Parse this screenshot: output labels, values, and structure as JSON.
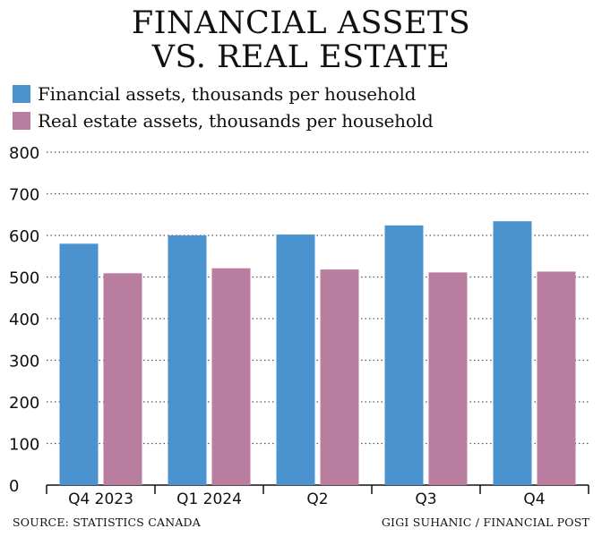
{
  "title_line1": "FINANCIAL ASSETS",
  "title_line2": "VS. REAL ESTATE",
  "legend": [
    {
      "label": "Financial assets, thousands per household",
      "color": "#4b93cf"
    },
    {
      "label": "Real estate assets, thousands per household",
      "color": "#b97d9f"
    }
  ],
  "source": "SOURCE: STATISTICS CANADA",
  "credit": "GIGI SUHANIC / FINANCIAL POST",
  "chart_data": {
    "type": "bar",
    "categories": [
      "Q4 2023",
      "Q1 2024",
      "Q2",
      "Q3",
      "Q4"
    ],
    "series": [
      {
        "name": "Financial assets, thousands per household",
        "values": [
          580,
          600,
          602,
          624,
          634
        ],
        "color": "#4b93cf"
      },
      {
        "name": "Real estate assets, thousands per household",
        "values": [
          509,
          521,
          518,
          511,
          513
        ],
        "color": "#b97d9f"
      }
    ],
    "yticks": [
      0,
      100,
      200,
      300,
      400,
      500,
      600,
      700,
      800
    ],
    "ylim": [
      0,
      800
    ],
    "grid": true,
    "legend_position": "top-left"
  }
}
